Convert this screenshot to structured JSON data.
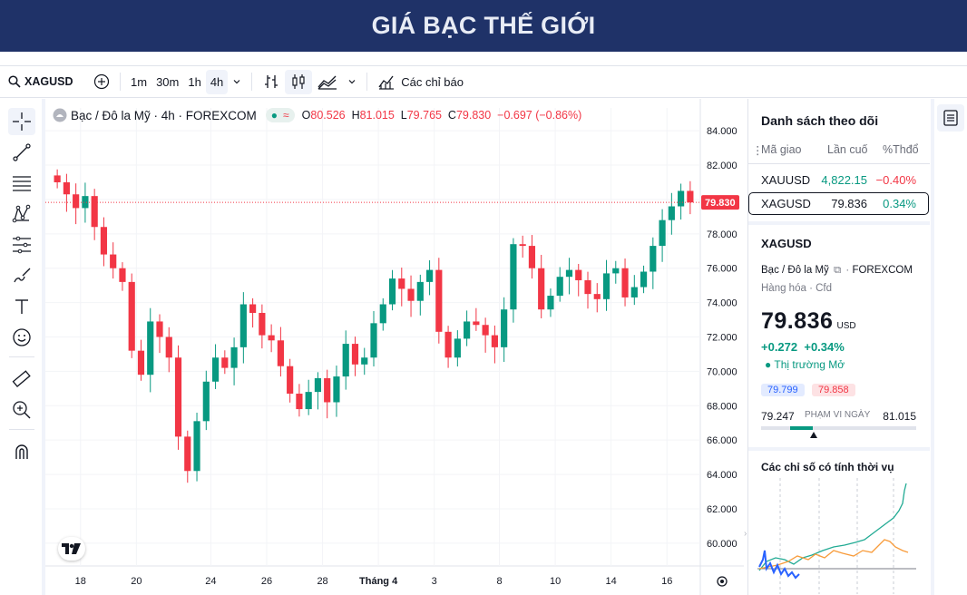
{
  "banner": {
    "title": "GIÁ BẠC THẾ GIỚI"
  },
  "toolbar": {
    "symbol": "XAGUSD",
    "intervals": [
      "1m",
      "30m",
      "1h",
      "4h"
    ],
    "active_interval": "4h",
    "indicators_label": "Các chỉ báo"
  },
  "legend": {
    "name": "Bạc / Đô la Mỹ · 4h · FOREXCOM",
    "o_label": "O",
    "o": "80.526",
    "h_label": "H",
    "h": "81.015",
    "l_label": "L",
    "l": "79.765",
    "c_label": "C",
    "c": "79.830",
    "change": "−0.697 (−0.86%)"
  },
  "colors": {
    "up": "#089981",
    "down": "#f23645",
    "accent": "#2962ff",
    "banner": "#1f3268"
  },
  "chart_data": {
    "type": "candlestick",
    "y_ticks": [
      "84.000",
      "82.000",
      "80.000",
      "78.000",
      "76.000",
      "74.000",
      "72.000",
      "70.000",
      "68.000",
      "66.000",
      "64.000",
      "62.000",
      "60.000"
    ],
    "x_ticks": [
      "18",
      "20",
      "24",
      "26",
      "28",
      "Tháng 4",
      "3",
      "8",
      "10",
      "14",
      "16"
    ],
    "ylim": [
      59.2,
      84.8
    ],
    "last_price_label": "79.830",
    "last_price": 79.83,
    "closes": [
      81.0,
      80.3,
      79.5,
      80.2,
      78.4,
      76.8,
      76.0,
      75.2,
      71.2,
      69.8,
      72.9,
      72.0,
      70.8,
      66.2,
      64.2,
      67.1,
      69.4,
      70.8,
      70.2,
      71.4,
      73.9,
      73.4,
      72.1,
      71.8,
      70.3,
      68.7,
      67.8,
      68.8,
      69.6,
      68.2,
      69.7,
      71.6,
      70.4,
      70.8,
      72.8,
      73.9,
      75.4,
      74.8,
      74.1,
      75.2,
      75.9,
      72.3,
      70.8,
      71.9,
      72.9,
      72.7,
      72.1,
      71.4,
      73.6,
      77.4,
      77.3,
      76.0,
      73.6,
      74.4,
      75.5,
      75.9,
      75.3,
      74.5,
      74.2,
      75.7,
      76.0,
      74.3,
      74.9,
      75.8,
      77.3,
      78.8,
      79.6,
      80.5,
      79.83
    ]
  },
  "watchlist": {
    "title": "Danh sách theo dõi",
    "col_symbol": "Mã giao",
    "col_last": "Lần cuố",
    "col_change": "%Thđổ",
    "rows": [
      {
        "symbol": "XAUUSD",
        "last": "4,822.15",
        "change": "−0.40%"
      },
      {
        "symbol": "XAGUSD",
        "last": "79.836",
        "change": "0.34%"
      }
    ]
  },
  "detail": {
    "symbol": "XAGUSD",
    "name": "Bạc / Đô la Mỹ",
    "exchange": "FOREXCOM",
    "category": "Hàng hóa",
    "type": "Cfd",
    "price": "79.836",
    "currency": "USD",
    "change_abs": "+0.272",
    "change_pct": "+0.34%",
    "market_status": "Thị trường Mở",
    "bid": "79.799",
    "ask": "79.858",
    "range_low": "79.247",
    "range_label": "PHẠM VI NGÀY",
    "range_high": "81.015",
    "range_fraction": 0.33,
    "seasonal_title": "Các chỉ số có tính thời vụ"
  }
}
